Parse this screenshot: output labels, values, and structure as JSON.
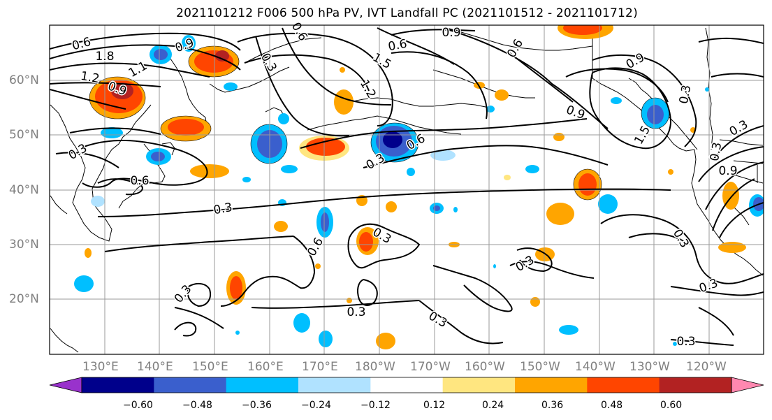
{
  "title": "2021101212 F006 500 hPa PV, IVT Landfall PC (2021101512 - 2021101712)",
  "lat_labels": [
    "60°N",
    "50°N",
    "40°N",
    "30°N",
    "20°N"
  ],
  "lon_labels": [
    "130°E",
    "140°E",
    "150°E",
    "160°E",
    "170°E",
    "180°W",
    "170°W",
    "160°W",
    "150°W",
    "140°W",
    "130°W",
    "120°W"
  ],
  "colorbar": {
    "ticks": [
      "−0.60",
      "−0.48",
      "−0.36",
      "−0.24",
      "−0.12",
      "0.12",
      "0.24",
      "0.36",
      "0.48",
      "0.60"
    ],
    "colors": [
      "#9932cc",
      "#00008b",
      "#3a5fcd",
      "#00bfff",
      "#b0e2ff",
      "#ffffff",
      "#ffe680",
      "#ffa500",
      "#ff4500",
      "#b22222",
      "#ff88b0"
    ]
  },
  "contour_labels": [
    "0.6",
    "1.8",
    "1.2",
    "0.9",
    "1.1",
    "0.9",
    "0.3",
    "0.6",
    "0.6",
    "0.9",
    "1.5",
    "1.2",
    "0.9",
    "0.6",
    "0.3",
    "0.3",
    "0.6",
    "0.3",
    "0.9",
    "0.3",
    "1.5",
    "0.9",
    "0.3",
    "0.6",
    "0.3",
    "0.6",
    "0.3",
    "0.3",
    "0.3",
    "0.3",
    "0.3",
    "0.3",
    "0.3",
    "0.3"
  ],
  "map_extent": {
    "lon": [
      120,
      250
    ],
    "lat": [
      10,
      70
    ]
  }
}
